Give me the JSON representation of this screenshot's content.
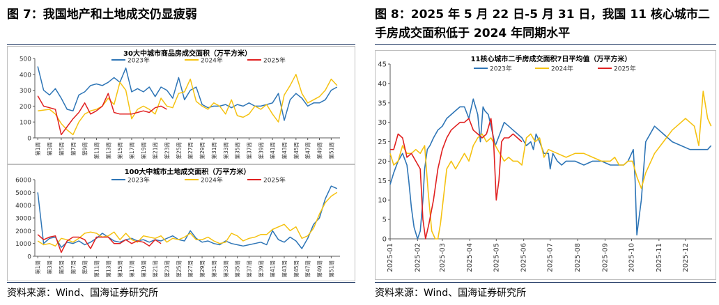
{
  "fig7": {
    "title": "图 7：我国地产和土地成交仍显疲弱",
    "source": "资料来源：Wind、国海证券研究所"
  },
  "fig8": {
    "title": "图 8：2025 年 5 月 22 日-5 月 31 日，我国 11 核心城市二手房成交面积低于 2024 年同期水平",
    "source": "资料来源：Wind、国海证券研究所"
  },
  "colors": {
    "y2023": "#2e75b6",
    "y2024": "#f5c211",
    "y2025": "#e02020",
    "grid": "#d9d9d9",
    "axis": "#595959"
  },
  "chart_data": [
    {
      "id": "c1",
      "type": "line",
      "title": "30大中城市商品房成交面积（万平方米）",
      "ylim": [
        0,
        500
      ],
      "yticks": [
        0,
        100,
        200,
        300,
        400,
        500
      ],
      "xlabels": [
        "第1周",
        "第3周",
        "第5周",
        "第7周",
        "第9周",
        "第11周",
        "第13周",
        "第15周",
        "第17周",
        "第19周",
        "第21周",
        "第23周",
        "第25周",
        "第27周",
        "第29周",
        "第31周",
        "第33周",
        "第35周",
        "第37周",
        "第39周",
        "第41周",
        "第43周",
        "第45周",
        "第47周",
        "第49周",
        "第51周"
      ],
      "series": [
        {
          "name": "2023年",
          "color": "#2e75b6",
          "values": [
            450,
            300,
            270,
            310,
            250,
            180,
            170,
            270,
            290,
            330,
            340,
            330,
            350,
            380,
            350,
            440,
            290,
            310,
            290,
            320,
            260,
            320,
            300,
            250,
            380,
            240,
            300,
            320,
            210,
            190,
            200,
            200,
            210,
            190,
            210,
            200,
            220,
            200,
            200,
            210,
            220,
            280,
            110,
            240,
            280,
            250,
            200,
            220,
            220,
            240,
            300,
            320
          ]
        },
        {
          "name": "2024年",
          "color": "#f5c211",
          "values": [
            170,
            175,
            180,
            150,
            90,
            50,
            20,
            100,
            150,
            170,
            180,
            200,
            250,
            210,
            350,
            300,
            120,
            180,
            200,
            180,
            150,
            250,
            200,
            190,
            280,
            290,
            370,
            230,
            200,
            180,
            220,
            200,
            150,
            240,
            140,
            130,
            150,
            200,
            180,
            210,
            150,
            100,
            270,
            330,
            400,
            280,
            220,
            240,
            260,
            300,
            370,
            330
          ]
        },
        {
          "name": "2025年",
          "color": "#e02020",
          "values": [
            265,
            200,
            190,
            180,
            20,
            70,
            120,
            160,
            220,
            150,
            170,
            200,
            280,
            160,
            150,
            150,
            150,
            160,
            170,
            160,
            190,
            200,
            180
          ]
        }
      ]
    },
    {
      "id": "c2",
      "type": "line",
      "title": "100大中城市土地成交面积（万平方米）",
      "ylim": [
        0,
        6000
      ],
      "yticks": [
        0,
        1000,
        2000,
        3000,
        4000,
        5000,
        6000
      ],
      "xlabels": [
        "第1周",
        "第3周",
        "第5周",
        "第7周",
        "第9周",
        "第11周",
        "第13周",
        "第15周",
        "第17周",
        "第19周",
        "第21周",
        "第23周",
        "第25周",
        "第27周",
        "第29周",
        "第31周",
        "第33周",
        "第35周",
        "第37周",
        "第39周",
        "第41周",
        "第43周",
        "第45周",
        "第47周",
        "第49周",
        "第51周"
      ],
      "series": [
        {
          "name": "2023年",
          "color": "#2e75b6",
          "values": [
            5000,
            1000,
            1400,
            1500,
            700,
            1100,
            1000,
            1200,
            900,
            1100,
            1400,
            1800,
            1500,
            1200,
            1100,
            1300,
            1400,
            1200,
            1300,
            1100,
            1300,
            1200,
            1400,
            1600,
            1300,
            1200,
            2000,
            1400,
            1100,
            1200,
            1000,
            900,
            1200,
            1000,
            900,
            800,
            900,
            1000,
            1100,
            900,
            2000,
            1300,
            1100,
            1500,
            1200,
            600,
            1400,
            2500,
            3000,
            4500,
            5500,
            5300
          ]
        },
        {
          "name": "2024年",
          "color": "#f5c211",
          "values": [
            1200,
            900,
            1000,
            800,
            1400,
            1300,
            1100,
            1400,
            1800,
            1900,
            1800,
            1500,
            1600,
            1900,
            1300,
            1800,
            1300,
            1100,
            1600,
            1500,
            1400,
            1600,
            1100,
            1400,
            1300,
            1500,
            1800,
            1300,
            1300,
            1500,
            1200,
            1000,
            1100,
            1800,
            1600,
            1200,
            1400,
            1500,
            1700,
            1700,
            2100,
            2300,
            2500,
            2000,
            2300,
            1400,
            1600,
            2200,
            3300,
            4200,
            4700,
            5000
          ]
        },
        {
          "name": "2025年",
          "color": "#e02020",
          "values": [
            1700,
            1300,
            1500,
            1600,
            300,
            1200,
            1500,
            1500,
            1300,
            600,
            1500,
            1500,
            1500,
            1000,
            1000,
            1300,
            1000,
            1200,
            1100,
            800,
            1300,
            1000
          ]
        }
      ]
    },
    {
      "id": "c3",
      "type": "line",
      "title": "11核心城市二手房成交面积7日平均值（万平方米）",
      "ylim": [
        0,
        45
      ],
      "yticks": [
        0,
        5,
        10,
        15,
        20,
        25,
        30,
        35,
        40,
        45
      ],
      "xlabels": [
        "2025-01",
        "2025-02",
        "2025-03",
        "2025-04",
        "2025-05",
        "2025-06",
        "2025-07",
        "2025-08",
        "2025-09",
        "2025-10",
        "2025-11",
        "2025-12"
      ],
      "series": [
        {
          "name": "2023年",
          "color": "#2e75b6",
          "x": [
            1,
            5,
            10,
            15,
            20,
            22,
            25,
            28,
            32,
            35,
            38,
            40,
            43,
            46,
            50,
            55,
            60,
            65,
            70,
            75,
            80,
            85,
            90,
            95,
            100,
            103,
            106,
            108,
            112,
            116,
            120,
            125,
            130,
            135,
            140,
            145,
            150,
            155,
            160,
            163,
            166,
            170,
            175,
            180,
            182,
            185,
            190,
            195,
            200,
            210,
            220,
            230,
            240,
            250,
            260,
            265,
            270,
            272,
            274,
            276,
            278,
            280,
            285,
            290,
            300,
            310,
            320,
            330,
            340,
            350,
            360,
            364
          ],
          "values": [
            14,
            17,
            20,
            22,
            19,
            15,
            8,
            3,
            0,
            2,
            10,
            18,
            23,
            24,
            26,
            28,
            29,
            31,
            32,
            33,
            34,
            34,
            31,
            36,
            32,
            25,
            34,
            33,
            32,
            28,
            24,
            27,
            30,
            29,
            28,
            27,
            26,
            24,
            25,
            23,
            27,
            25,
            22,
            22,
            18,
            22,
            20,
            19,
            20,
            20,
            19,
            20,
            20,
            19,
            19,
            19,
            20,
            21,
            22,
            23,
            15,
            1,
            10,
            25,
            29,
            27,
            25,
            24,
            23,
            23,
            23,
            24
          ]
        },
        {
          "name": "2024年",
          "color": "#f5c211",
          "x": [
            1,
            5,
            10,
            15,
            20,
            25,
            30,
            35,
            40,
            44,
            48,
            52,
            55,
            58,
            62,
            65,
            70,
            75,
            80,
            85,
            90,
            95,
            100,
            105,
            110,
            115,
            120,
            125,
            130,
            135,
            140,
            145,
            150,
            155,
            160,
            165,
            170,
            175,
            180,
            190,
            200,
            210,
            220,
            230,
            240,
            250,
            255,
            260,
            265,
            270,
            275,
            280,
            285,
            290,
            300,
            310,
            320,
            330,
            335,
            340,
            345,
            350,
            355,
            360,
            364
          ],
          "values": [
            22,
            19,
            20,
            24,
            22,
            22,
            23,
            22,
            24,
            12,
            2,
            0,
            0,
            4,
            12,
            18,
            20,
            18,
            20,
            22,
            20,
            24,
            26,
            27,
            25,
            26,
            24,
            22,
            20,
            21,
            20,
            20,
            19,
            26,
            27,
            25,
            26,
            21,
            23,
            22,
            21,
            22,
            22,
            21,
            20,
            20,
            21,
            19,
            19,
            20,
            20,
            16,
            13,
            17,
            22,
            25,
            28,
            30,
            31,
            30,
            29,
            24,
            38,
            31,
            29
          ]
        },
        {
          "name": "2025年",
          "color": "#e02020",
          "x": [
            1,
            5,
            10,
            15,
            20,
            25,
            30,
            35,
            38,
            41,
            45,
            50,
            55,
            60,
            65,
            70,
            75,
            80,
            85,
            90,
            95,
            100,
            105,
            110,
            115,
            118,
            121,
            124,
            127,
            130,
            135,
            140,
            145,
            150
          ],
          "values": [
            23,
            23,
            27,
            26,
            21,
            22,
            20,
            18,
            5,
            0,
            4,
            10,
            18,
            23,
            26,
            28,
            29,
            30,
            30,
            31,
            28,
            27,
            26,
            27,
            31,
            25,
            10,
            15,
            25,
            26,
            26,
            27,
            26,
            25
          ]
        }
      ]
    }
  ]
}
